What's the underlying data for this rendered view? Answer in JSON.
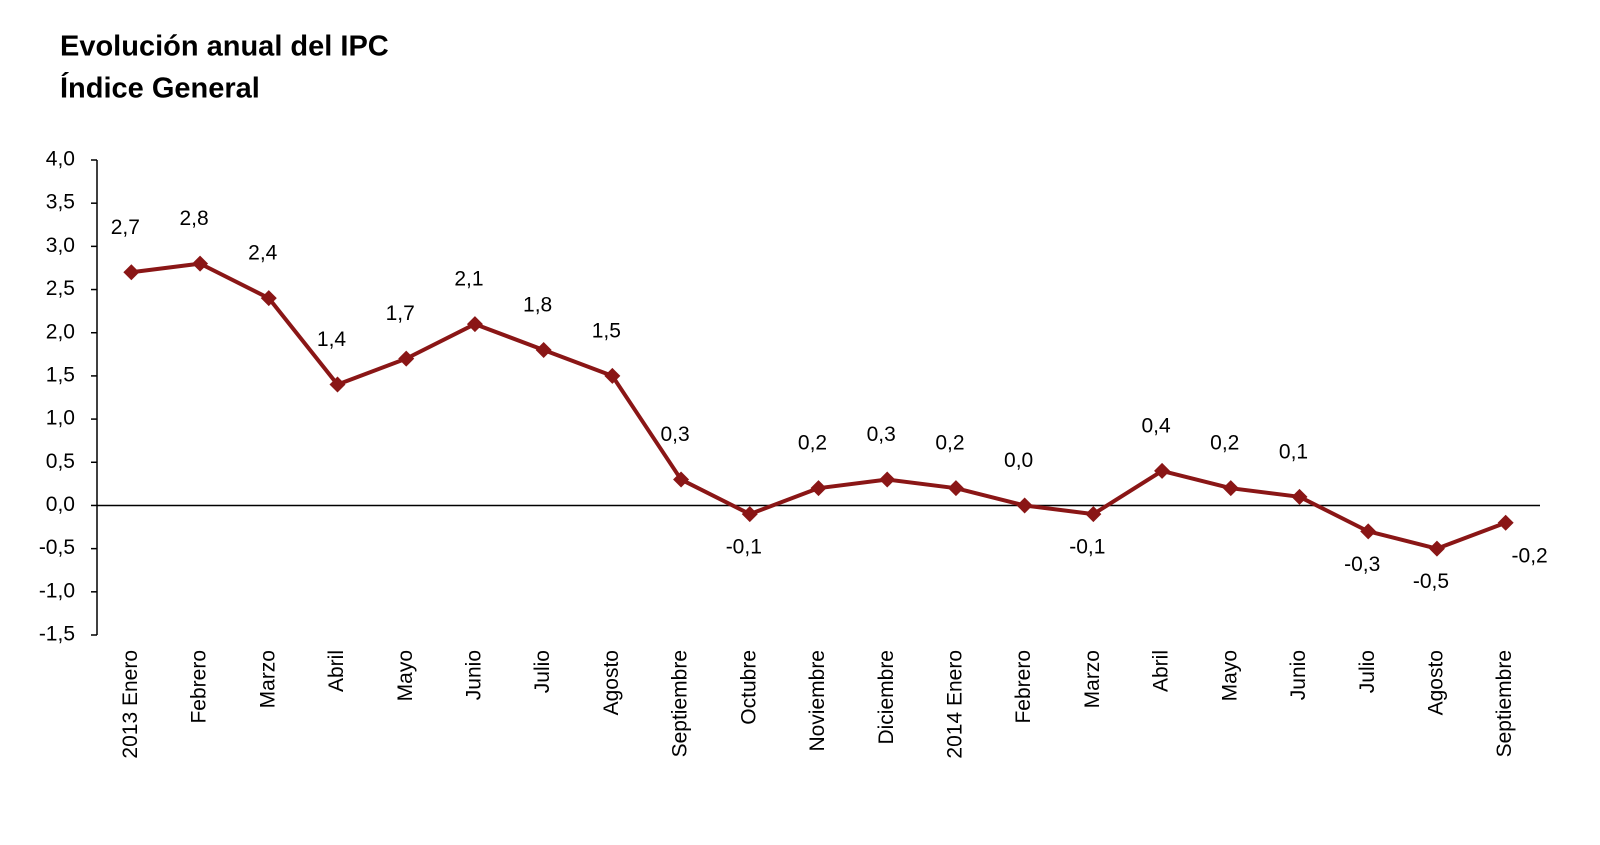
{
  "chart_data": {
    "type": "line",
    "title": "Evolución anual del IPC",
    "subtitle": "Índice General",
    "categories": [
      "2013 Enero",
      "Febrero",
      "Marzo",
      "Abril",
      "Mayo",
      "Junio",
      "Julio",
      "Agosto",
      "Septiembre",
      "Octubre",
      "Noviembre",
      "Diciembre",
      "2014 Enero",
      "Febrero",
      "Marzo",
      "Abril",
      "Mayo",
      "Junio",
      "Julio",
      "Agosto",
      "Septiembre"
    ],
    "series": [
      {
        "name": "IPC",
        "color": "#8a1616",
        "values": [
          2.7,
          2.8,
          2.4,
          1.4,
          1.7,
          2.1,
          1.8,
          1.5,
          0.3,
          -0.1,
          0.2,
          0.3,
          0.2,
          0.0,
          -0.1,
          0.4,
          0.2,
          0.1,
          -0.3,
          -0.5,
          -0.2
        ],
        "value_labels": [
          "2,7",
          "2,8",
          "2,4",
          "1,4",
          "1,7",
          "2,1",
          "1,8",
          "1,5",
          "0,3",
          "-0,1",
          "0,2",
          "0,3",
          "0,2",
          "0,0",
          "-0,1",
          "0,4",
          "0,2",
          "0,1",
          "-0,3",
          "-0,5",
          "-0,2"
        ]
      }
    ],
    "ylim": [
      -1.5,
      4.0
    ],
    "yticks": [
      {
        "value": -1.5,
        "label": "-1,5"
      },
      {
        "value": -1.0,
        "label": "-1,0"
      },
      {
        "value": -0.5,
        "label": "-0,5"
      },
      {
        "value": 0,
        "label": "0,0"
      },
      {
        "value": 0.5,
        "label": "0,5"
      },
      {
        "value": 1.0,
        "label": "1,0"
      },
      {
        "value": 1.5,
        "label": "1,5"
      },
      {
        "value": 2.0,
        "label": "2,0"
      },
      {
        "value": 2.5,
        "label": "2,5"
      },
      {
        "value": 3.0,
        "label": "3,0"
      },
      {
        "value": 3.5,
        "label": "3,5"
      },
      {
        "value": 4.0,
        "label": "4,0"
      }
    ],
    "grid": false
  }
}
